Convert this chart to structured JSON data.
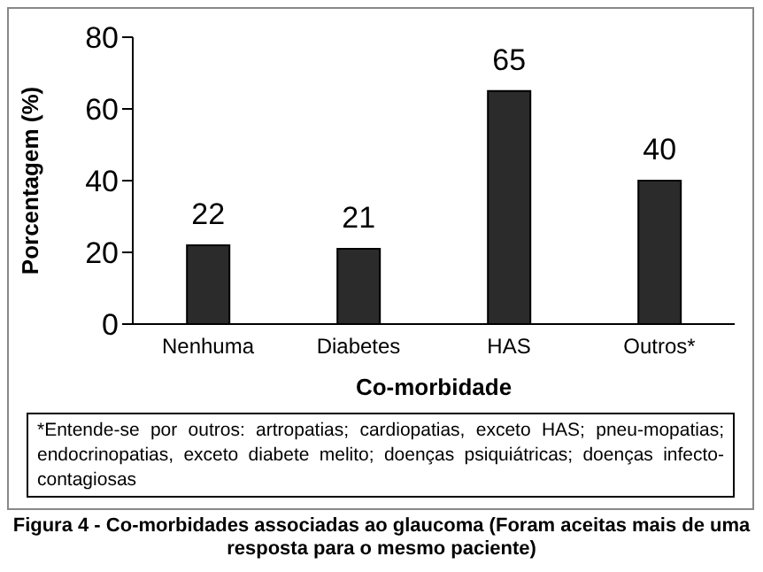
{
  "chart_data": {
    "type": "bar",
    "categories": [
      "Nenhuma",
      "Diabetes",
      "HAS",
      "Outros*"
    ],
    "values": [
      22,
      21,
      65,
      40
    ],
    "color": "#2b2b2b",
    "ylim": [
      0,
      80
    ],
    "yticks": [
      0,
      20,
      40,
      60,
      80
    ],
    "grid": false,
    "data_labels": true,
    "xlabel": "Co-morbidade",
    "ylabel": "Porcentagem (%)",
    "annotations": [
      "*Entende-se por outros: artropatias; cardiopatias, exceto HAS; pneu-mopatias; endocrinopatias, exceto diabete melito; doenças psiquiátricas; doenças infecto-contagiosas",
      "Figura 4 - Co-morbidades associadas ao glaucoma (Foram aceitas mais de uma resposta para o mesmo paciente)"
    ]
  }
}
